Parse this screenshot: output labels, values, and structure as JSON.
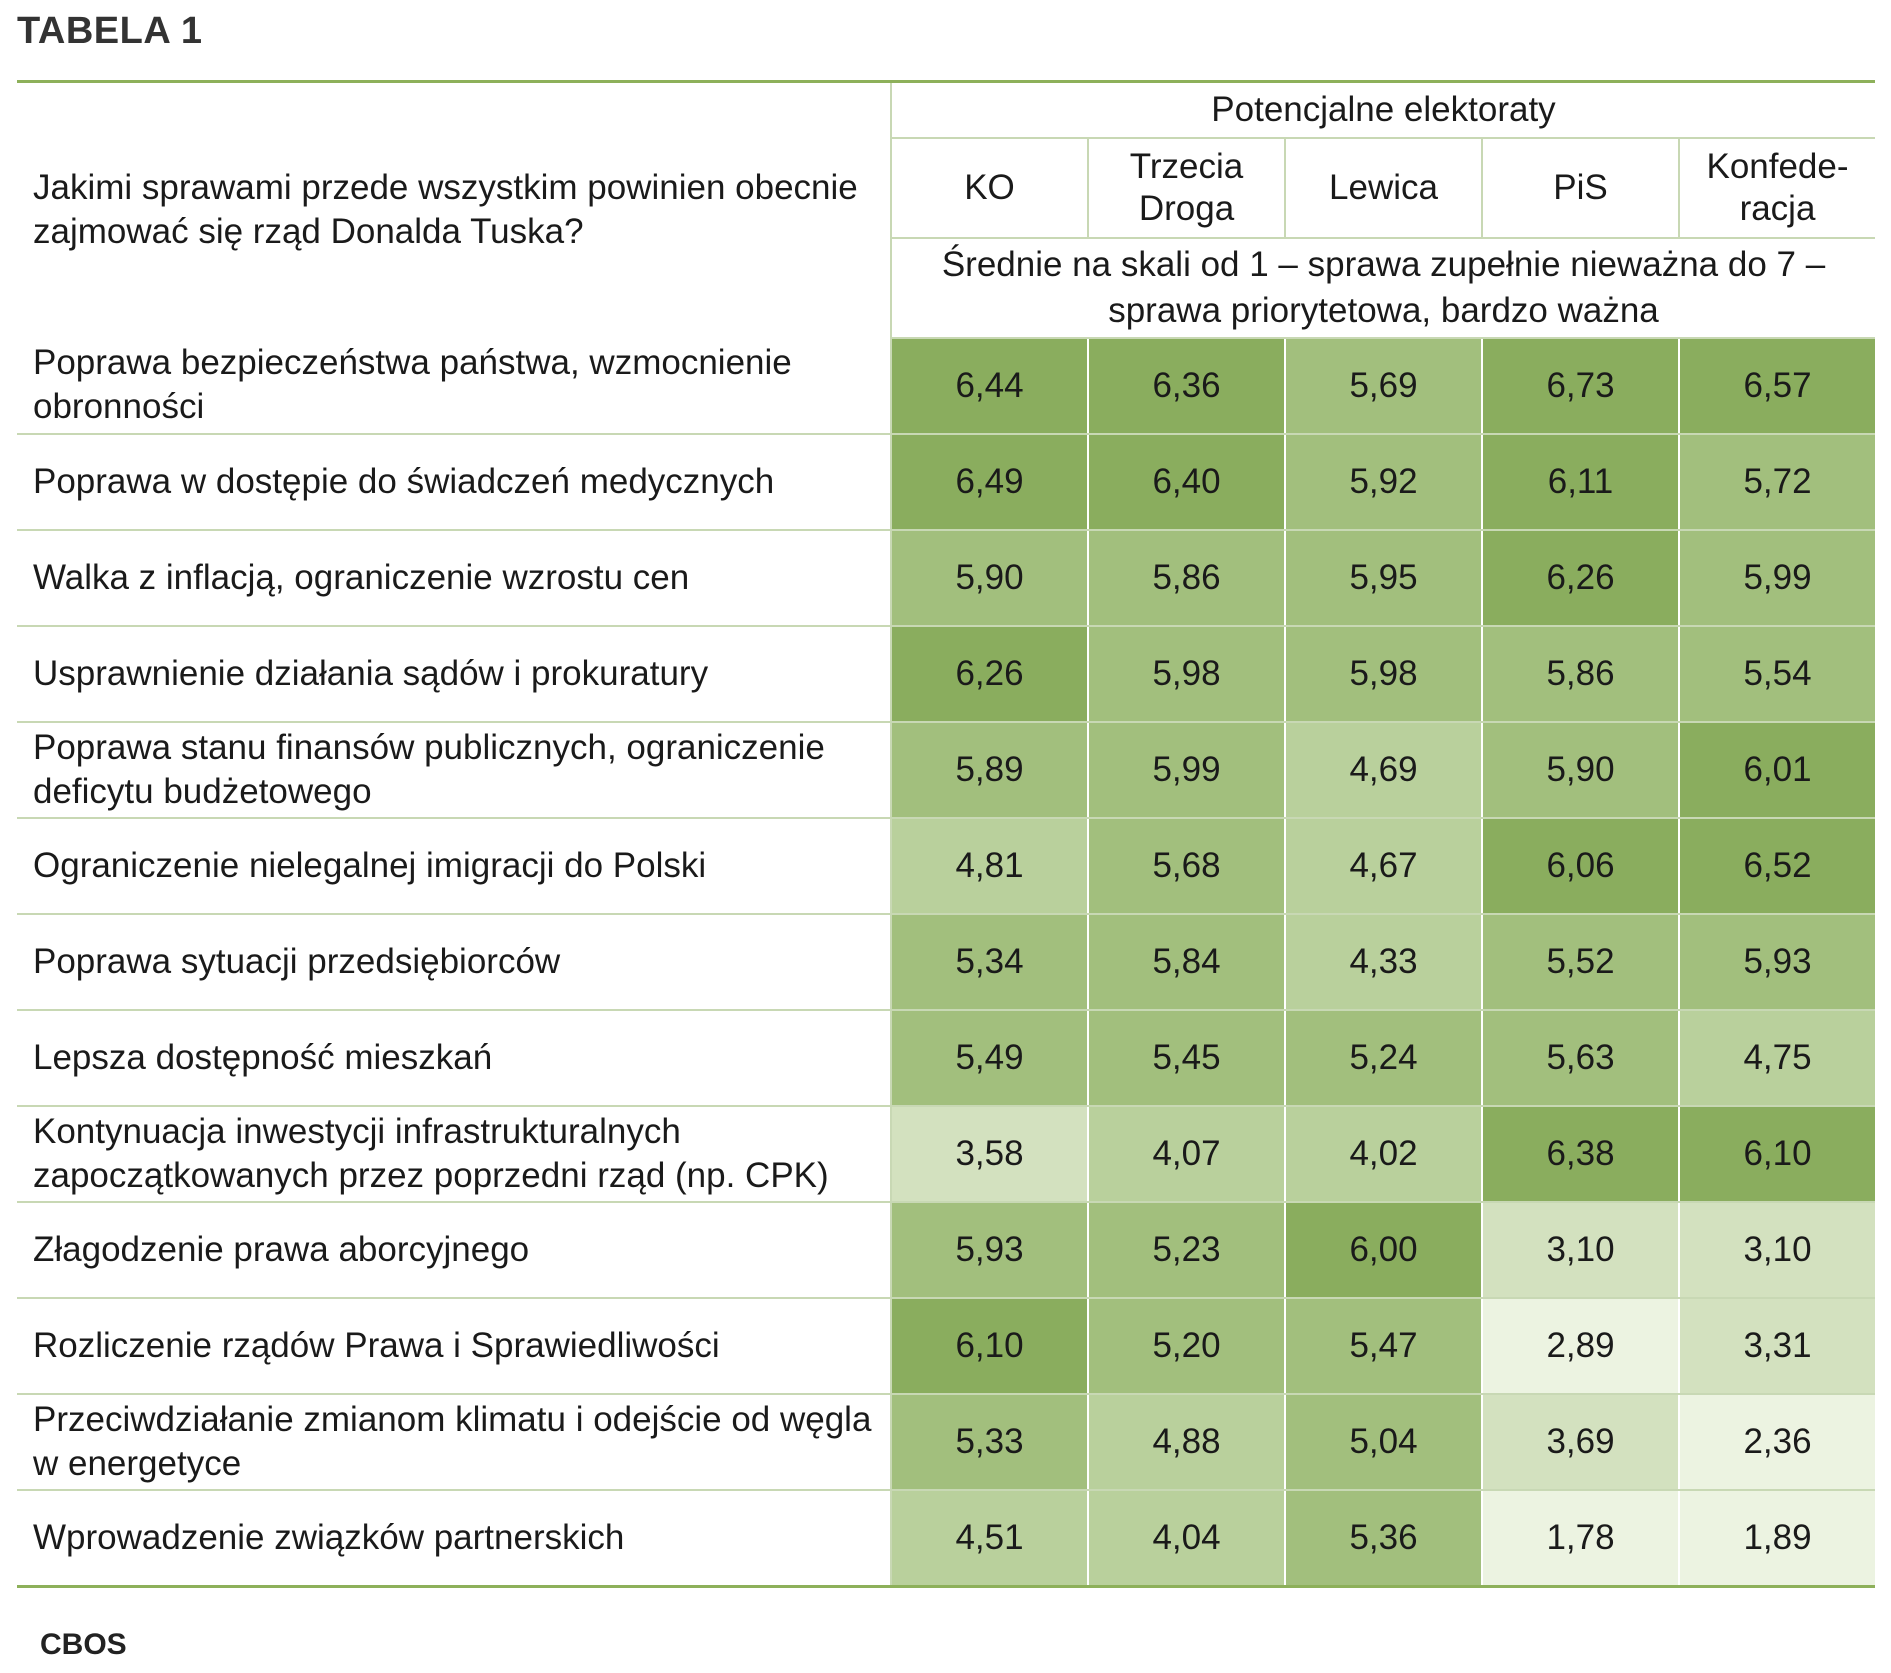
{
  "title": "TABELA 1",
  "source": "CBOS",
  "chart_data": {
    "type": "table",
    "question": "Jakimi sprawami przede wszystkim powinien obecnie zajmować się rząd Donalda Tuska?",
    "group_header": "Potencjalne elektoraty",
    "columns": [
      "KO",
      "Trzecia Droga",
      "Lewica",
      "PiS",
      "Konfede-racja"
    ],
    "scale_note": "Średnie na skali od 1 – sprawa zupełnie nieważna do 7 – sprawa priorytetowa, bardzo ważna",
    "rows": [
      {
        "label": "Poprawa bezpieczeństwa państwa, wzmocnienie obronności",
        "values": [
          "6,44",
          "6,36",
          "5,69",
          "6,73",
          "6,57"
        ]
      },
      {
        "label": "Poprawa w dostępie do świadczeń medycznych",
        "values": [
          "6,49",
          "6,40",
          "5,92",
          "6,11",
          "5,72"
        ]
      },
      {
        "label": "Walka z inflacją, ograniczenie wzrostu cen",
        "values": [
          "5,90",
          "5,86",
          "5,95",
          "6,26",
          "5,99"
        ]
      },
      {
        "label": "Usprawnienie działania sądów i prokuratury",
        "values": [
          "6,26",
          "5,98",
          "5,98",
          "5,86",
          "5,54"
        ]
      },
      {
        "label": "Poprawa stanu finansów publicznych, ograniczenie deficytu budżetowego",
        "values": [
          "5,89",
          "5,99",
          "4,69",
          "5,90",
          "6,01"
        ]
      },
      {
        "label": "Ograniczenie nielegalnej imigracji do Polski",
        "values": [
          "4,81",
          "5,68",
          "4,67",
          "6,06",
          "6,52"
        ]
      },
      {
        "label": "Poprawa sytuacji przedsiębiorców",
        "values": [
          "5,34",
          "5,84",
          "4,33",
          "5,52",
          "5,93"
        ]
      },
      {
        "label": "Lepsza dostępność mieszkań",
        "values": [
          "5,49",
          "5,45",
          "5,24",
          "5,63",
          "4,75"
        ]
      },
      {
        "label": "Kontynuacja inwestycji infrastrukturalnych zapoczątkowanych przez poprzedni rząd (np. CPK)",
        "values": [
          "3,58",
          "4,07",
          "4,02",
          "6,38",
          "6,10"
        ]
      },
      {
        "label": "Złagodzenie prawa aborcyjnego",
        "values": [
          "5,93",
          "5,23",
          "6,00",
          "3,10",
          "3,10"
        ]
      },
      {
        "label": "Rozliczenie rządów Prawa i Sprawiedliwości",
        "values": [
          "6,10",
          "5,20",
          "5,47",
          "2,89",
          "3,31"
        ]
      },
      {
        "label": "Przeciwdziałanie zmianom klimatu i odejście od węgla w energetyce",
        "values": [
          "5,33",
          "4,88",
          "5,04",
          "3,69",
          "2,36"
        ]
      },
      {
        "label": "Wprowadzenie związków partnerskich",
        "values": [
          "4,51",
          "4,04",
          "5,36",
          "1,78",
          "1,89"
        ]
      }
    ],
    "colors": {
      "very_high": "#8aad5e",
      "high": "#a2bf7d",
      "medium": "#b9d09c",
      "low": "#d3e1bf",
      "very_low": "#ecf3e1",
      "rule": "#8db05a"
    }
  }
}
